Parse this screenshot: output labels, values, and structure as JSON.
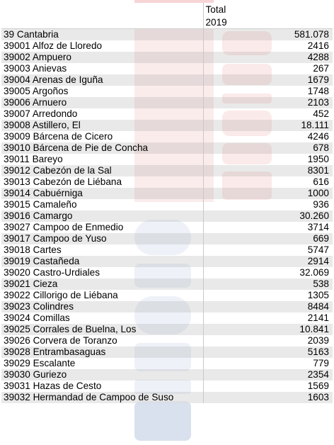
{
  "header": {
    "line1": "Total",
    "line2": "2019"
  },
  "watermark": {
    "color_red": "#d72d28",
    "color_blue": "#2e5aa8"
  },
  "rows": [
    {
      "name": "39 Cantabria",
      "total": "581.078"
    },
    {
      "name": "39001 Alfoz de Lloredo",
      "total": "2416"
    },
    {
      "name": "39002 Ampuero",
      "total": "4288"
    },
    {
      "name": "39003 Anievas",
      "total": "267"
    },
    {
      "name": "39004 Arenas de Iguña",
      "total": "1679"
    },
    {
      "name": "39005 Argoños",
      "total": "1748"
    },
    {
      "name": "39006 Arnuero",
      "total": "2103"
    },
    {
      "name": "39007 Arredondo",
      "total": "452"
    },
    {
      "name": "39008 Astillero, El",
      "total": "18.111"
    },
    {
      "name": "39009 Bárcena de Cicero",
      "total": "4246"
    },
    {
      "name": "39010 Bárcena de Pie de Concha",
      "total": "678"
    },
    {
      "name": "39011 Bareyo",
      "total": "1950"
    },
    {
      "name": "39012 Cabezón de la Sal",
      "total": "8301"
    },
    {
      "name": "39013 Cabezón de Liébana",
      "total": "616"
    },
    {
      "name": "39014 Cabuérniga",
      "total": "1000"
    },
    {
      "name": "39015 Camaleño",
      "total": "936"
    },
    {
      "name": "39016 Camargo",
      "total": "30.260"
    },
    {
      "name": "39027 Campoo de Enmedio",
      "total": "3714"
    },
    {
      "name": "39017 Campoo de Yuso",
      "total": "669"
    },
    {
      "name": "39018 Cartes",
      "total": "5747"
    },
    {
      "name": "39019 Castañeda",
      "total": "2914"
    },
    {
      "name": "39020 Castro-Urdiales",
      "total": "32.069"
    },
    {
      "name": "39021 Cieza",
      "total": "538"
    },
    {
      "name": "39022 Cillorigo de Liébana",
      "total": "1305"
    },
    {
      "name": "39023 Colindres",
      "total": "8484"
    },
    {
      "name": "39024 Comillas",
      "total": "2141"
    },
    {
      "name": "39025 Corrales de Buelna, Los",
      "total": "10.841"
    },
    {
      "name": "39026 Corvera de Toranzo",
      "total": "2039"
    },
    {
      "name": "39028 Entrambasaguas",
      "total": "5163"
    },
    {
      "name": "39029 Escalante",
      "total": "779"
    },
    {
      "name": "39030 Guriezo",
      "total": "2354"
    },
    {
      "name": "39031 Hazas de Cesto",
      "total": "1569"
    },
    {
      "name": "39032 Hermandad de Campoo de Suso",
      "total": "1603"
    }
  ]
}
